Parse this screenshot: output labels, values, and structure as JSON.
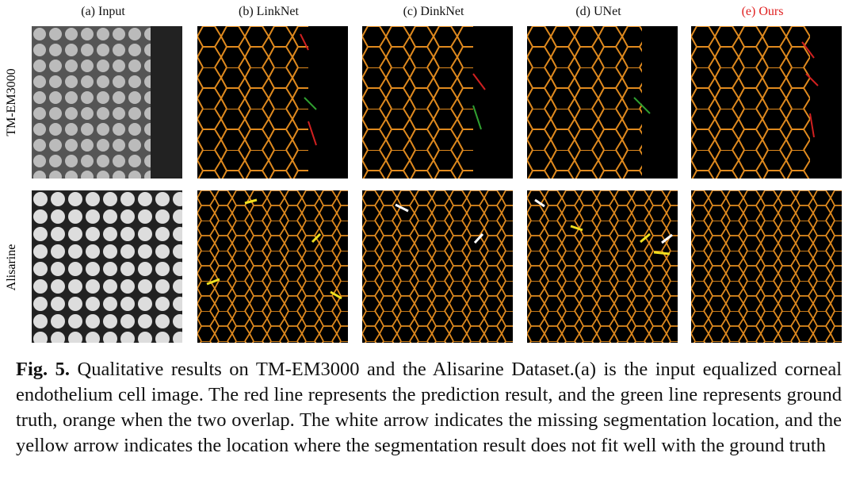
{
  "columns": [
    "(a) Input",
    "(b) LinkNet",
    "(c) DinkNet",
    "(d) UNet",
    "(e) Ours"
  ],
  "rows": [
    "TM-EM3000",
    "Alisarine"
  ],
  "caption": {
    "label": "Fig. 5.",
    "text": "Qualitative results on TM-EM3000 and the Alisarine Dataset.(a) is the input equalized corneal endothelium cell image. The red line represents the prediction result, and the green line represents ground truth, orange when the two overlap. The white arrow indicates the missing segmentation location, and the yellow arrow indicates the location where the segmentation result does not fit well with the ground truth"
  }
}
